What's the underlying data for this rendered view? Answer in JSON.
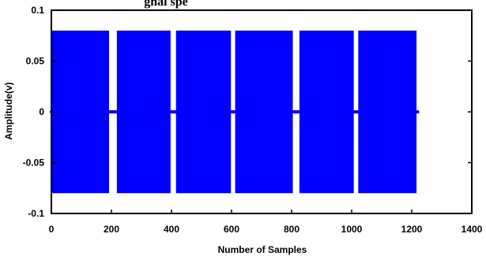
{
  "chart_data": {
    "type": "area",
    "title": "gnal spe",
    "xlabel": "Number of Samples",
    "ylabel": "Amplitude(v)",
    "xlim": [
      0,
      1400
    ],
    "ylim": [
      -0.1,
      0.1
    ],
    "xticks": [
      "0",
      "200",
      "400",
      "600",
      "800",
      "1000",
      "1200",
      "1400"
    ],
    "yticks": [
      "0.1",
      "0.05",
      "0",
      "-0.05",
      "-0.1"
    ],
    "grid": false,
    "legend": "none",
    "baseline": {
      "x": [
        0,
        1220
      ],
      "y": 0
    },
    "series": [
      {
        "color": "#0000ff",
        "bursts": [
          {
            "x_start": 0,
            "x_end": 192,
            "y_max": 0.08,
            "y_min": -0.08
          },
          {
            "x_start": 218,
            "x_end": 397,
            "y_max": 0.08,
            "y_min": -0.08
          },
          {
            "x_start": 415,
            "x_end": 598,
            "y_max": 0.08,
            "y_min": -0.08
          },
          {
            "x_start": 612,
            "x_end": 804,
            "y_max": 0.08,
            "y_min": -0.08
          },
          {
            "x_start": 826,
            "x_end": 1007,
            "y_max": 0.08,
            "y_min": -0.08
          },
          {
            "x_start": 1022,
            "x_end": 1216,
            "y_max": 0.08,
            "y_min": -0.08
          }
        ]
      }
    ]
  }
}
